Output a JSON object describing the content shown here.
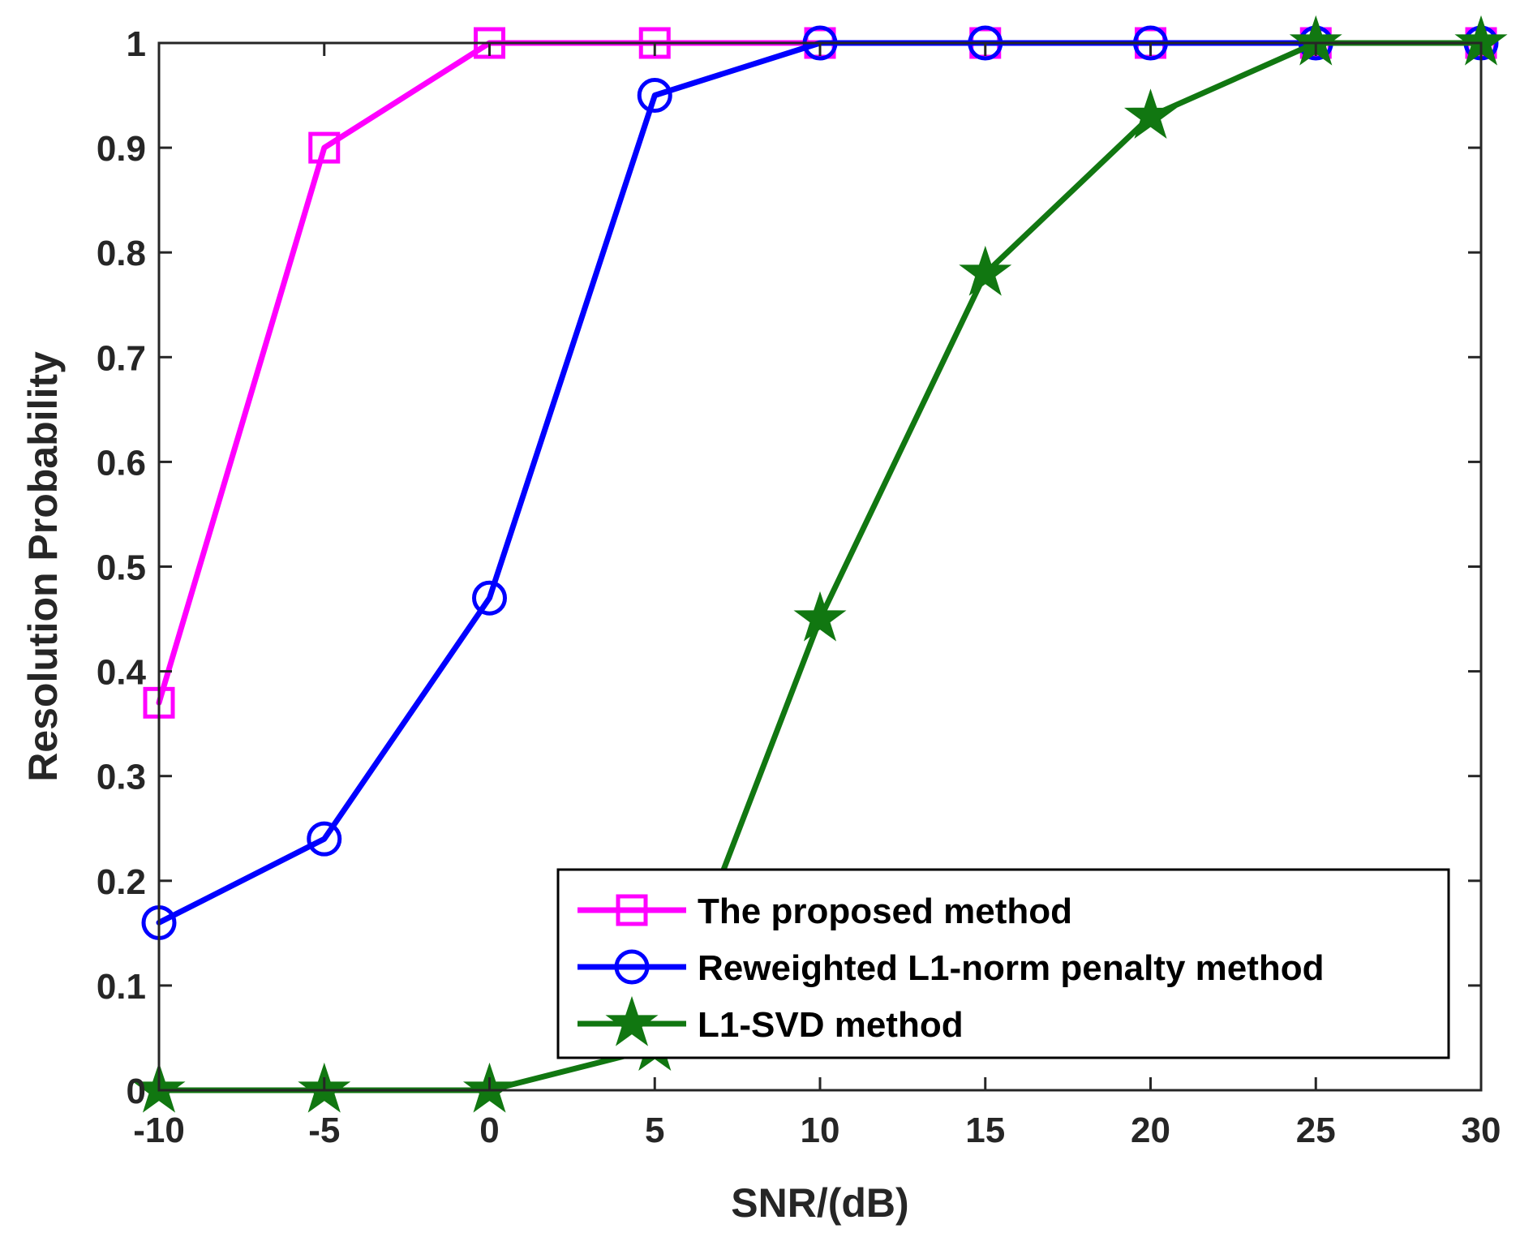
{
  "chart_data": {
    "type": "line",
    "title": "",
    "xlabel": "SNR/(dB)",
    "ylabel": "Resolution Probability",
    "xlim": [
      -10,
      30
    ],
    "ylim": [
      0,
      1
    ],
    "xticks": [
      "-10",
      "-5",
      "0",
      "5",
      "10",
      "15",
      "20",
      "25",
      "30"
    ],
    "yticks": [
      "0",
      "0.1",
      "0.2",
      "0.3",
      "0.4",
      "0.5",
      "0.6",
      "0.7",
      "0.8",
      "0.9",
      "1"
    ],
    "x": [
      -10,
      -5,
      0,
      5,
      10,
      15,
      20,
      25,
      30
    ],
    "grid": false,
    "legend_position": "bottom-right",
    "series": [
      {
        "name": "The proposed method",
        "values": [
          0.37,
          0.9,
          1,
          1,
          1,
          1,
          1,
          1,
          1
        ],
        "color": "#ff00ff",
        "marker": "square"
      },
      {
        "name": "Reweighted L1-norm penalty method",
        "values": [
          0.16,
          0.24,
          0.47,
          0.95,
          1,
          1,
          1,
          1,
          1
        ],
        "color": "#0000ff",
        "marker": "circle"
      },
      {
        "name": "L1-SVD method",
        "values": [
          0,
          0,
          0,
          0.04,
          0.45,
          0.78,
          0.93,
          1,
          1
        ],
        "color": "#117711",
        "marker": "star"
      }
    ]
  }
}
